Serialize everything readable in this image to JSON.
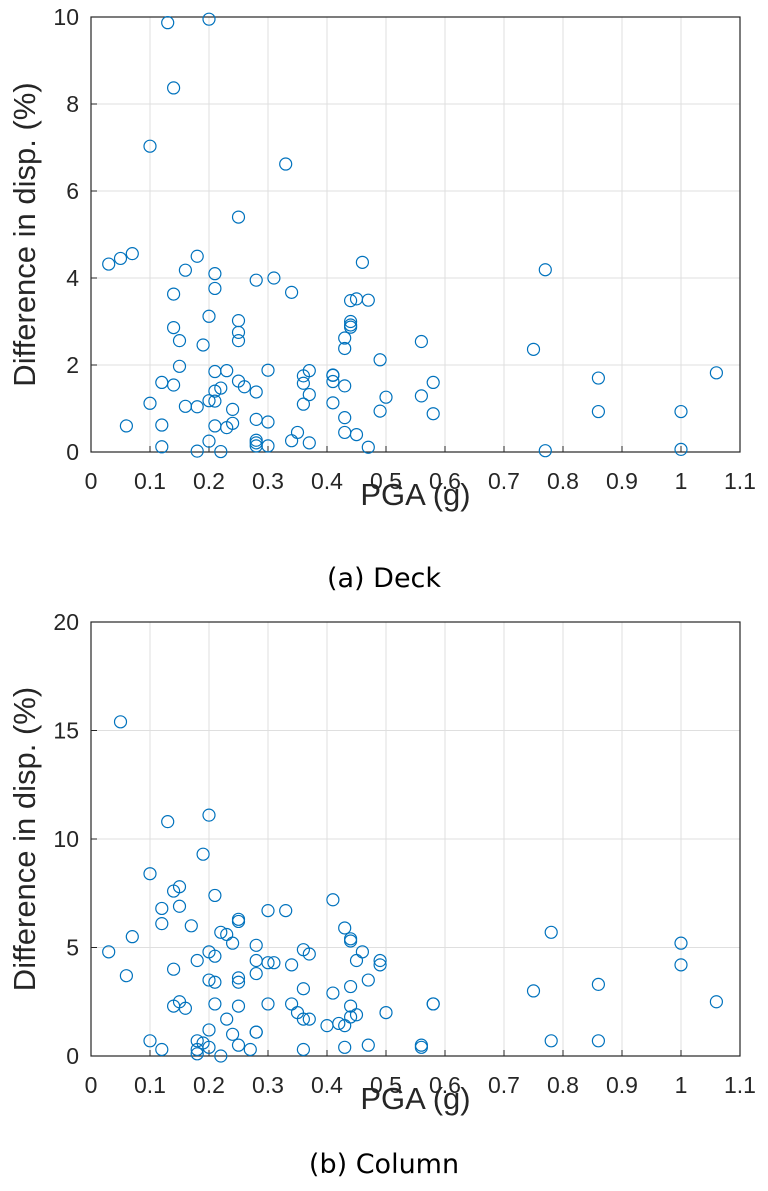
{
  "chart_data": [
    {
      "type": "scatter",
      "caption": "(a) Deck",
      "xlabel": "PGA (g)",
      "ylabel": "Difference in disp. (%)",
      "xlim": [
        0,
        1.1
      ],
      "ylim": [
        0,
        10
      ],
      "xticks": [
        "0",
        "0.1",
        "0.2",
        "0.3",
        "0.4",
        "0.5",
        "0.6",
        "0.7",
        "0.8",
        "0.9",
        "1",
        "1.1"
      ],
      "yticks": [
        "0",
        "2",
        "4",
        "6",
        "8",
        "10"
      ],
      "grid": true,
      "marker_color": "#0072BD",
      "points": [
        [
          0.13,
          9.87
        ],
        [
          0.2,
          9.95
        ],
        [
          0.14,
          8.37
        ],
        [
          0.1,
          7.03
        ],
        [
          0.33,
          6.62
        ],
        [
          0.25,
          5.4
        ],
        [
          0.03,
          4.32
        ],
        [
          0.05,
          4.45
        ],
        [
          0.07,
          4.56
        ],
        [
          0.16,
          4.18
        ],
        [
          0.18,
          4.5
        ],
        [
          0.21,
          4.1
        ],
        [
          0.21,
          3.76
        ],
        [
          0.28,
          3.95
        ],
        [
          0.31,
          4.0
        ],
        [
          0.46,
          4.36
        ],
        [
          0.77,
          4.19
        ],
        [
          0.14,
          3.63
        ],
        [
          0.34,
          3.67
        ],
        [
          0.44,
          3.48
        ],
        [
          0.45,
          3.52
        ],
        [
          0.47,
          3.49
        ],
        [
          0.2,
          3.12
        ],
        [
          0.25,
          3.02
        ],
        [
          0.44,
          3.0
        ],
        [
          0.44,
          2.87
        ],
        [
          0.44,
          2.92
        ],
        [
          0.14,
          2.86
        ],
        [
          0.25,
          2.75
        ],
        [
          0.25,
          2.56
        ],
        [
          0.15,
          2.56
        ],
        [
          0.43,
          2.62
        ],
        [
          0.43,
          2.38
        ],
        [
          0.19,
          2.46
        ],
        [
          0.56,
          2.54
        ],
        [
          0.75,
          2.36
        ],
        [
          0.49,
          2.12
        ],
        [
          0.15,
          1.97
        ],
        [
          0.21,
          1.85
        ],
        [
          0.23,
          1.87
        ],
        [
          0.3,
          1.88
        ],
        [
          0.37,
          1.87
        ],
        [
          0.36,
          1.75
        ],
        [
          0.41,
          1.77
        ],
        [
          0.41,
          1.76
        ],
        [
          0.12,
          1.6
        ],
        [
          0.14,
          1.54
        ],
        [
          0.25,
          1.63
        ],
        [
          0.26,
          1.5
        ],
        [
          0.21,
          1.4
        ],
        [
          0.22,
          1.47
        ],
        [
          0.28,
          1.38
        ],
        [
          0.36,
          1.58
        ],
        [
          0.41,
          1.62
        ],
        [
          0.43,
          1.52
        ],
        [
          0.37,
          1.32
        ],
        [
          0.5,
          1.26
        ],
        [
          0.56,
          1.29
        ],
        [
          0.58,
          1.6
        ],
        [
          0.86,
          1.7
        ],
        [
          1.06,
          1.82
        ],
        [
          0.1,
          1.12
        ],
        [
          0.16,
          1.05
        ],
        [
          0.18,
          1.04
        ],
        [
          0.2,
          1.18
        ],
        [
          0.21,
          1.17
        ],
        [
          0.24,
          0.98
        ],
        [
          0.35,
          0.45
        ],
        [
          0.36,
          1.1
        ],
        [
          0.41,
          1.13
        ],
        [
          0.49,
          0.94
        ],
        [
          0.58,
          0.88
        ],
        [
          0.86,
          0.93
        ],
        [
          1.0,
          0.93
        ],
        [
          0.06,
          0.6
        ],
        [
          0.12,
          0.62
        ],
        [
          0.21,
          0.6
        ],
        [
          0.23,
          0.56
        ],
        [
          0.24,
          0.66
        ],
        [
          0.28,
          0.75
        ],
        [
          0.3,
          0.69
        ],
        [
          0.43,
          0.79
        ],
        [
          0.43,
          0.45
        ],
        [
          0.45,
          0.4
        ],
        [
          0.12,
          0.12
        ],
        [
          0.18,
          0.02
        ],
        [
          0.2,
          0.25
        ],
        [
          0.22,
          0.01
        ],
        [
          0.28,
          0.14
        ],
        [
          0.28,
          0.21
        ],
        [
          0.28,
          0.27
        ],
        [
          0.3,
          0.14
        ],
        [
          0.34,
          0.26
        ],
        [
          0.37,
          0.21
        ],
        [
          0.47,
          0.11
        ],
        [
          0.77,
          0.03
        ],
        [
          1.0,
          0.06
        ]
      ]
    },
    {
      "type": "scatter",
      "caption": "(b) Column",
      "xlabel": "PGA (g)",
      "ylabel": "Difference in disp. (%)",
      "xlim": [
        0,
        1.1
      ],
      "ylim": [
        0,
        20
      ],
      "xticks": [
        "0",
        "0.1",
        "0.2",
        "0.3",
        "0.4",
        "0.5",
        "0.6",
        "0.7",
        "0.8",
        "0.9",
        "1",
        "1.1"
      ],
      "yticks": [
        "0",
        "5",
        "10",
        "15",
        "20"
      ],
      "grid": true,
      "marker_color": "#0072BD",
      "points": [
        [
          0.05,
          15.4
        ],
        [
          0.13,
          10.8
        ],
        [
          0.2,
          11.1
        ],
        [
          0.19,
          9.3
        ],
        [
          0.1,
          8.4
        ],
        [
          0.14,
          7.6
        ],
        [
          0.15,
          7.8
        ],
        [
          0.21,
          7.4
        ],
        [
          0.41,
          7.2
        ],
        [
          0.15,
          6.9
        ],
        [
          0.12,
          6.8
        ],
        [
          0.3,
          6.7
        ],
        [
          0.33,
          6.7
        ],
        [
          0.25,
          6.3
        ],
        [
          0.25,
          6.2
        ],
        [
          0.12,
          6.1
        ],
        [
          0.17,
          6.0
        ],
        [
          0.22,
          5.7
        ],
        [
          0.23,
          5.6
        ],
        [
          0.24,
          5.2
        ],
        [
          0.43,
          5.9
        ],
        [
          0.44,
          5.4
        ],
        [
          0.44,
          5.3
        ],
        [
          0.07,
          5.5
        ],
        [
          0.28,
          5.1
        ],
        [
          0.78,
          5.7
        ],
        [
          1.0,
          5.2
        ],
        [
          0.03,
          4.8
        ],
        [
          0.2,
          4.8
        ],
        [
          0.21,
          4.6
        ],
        [
          0.36,
          4.9
        ],
        [
          0.37,
          4.7
        ],
        [
          0.46,
          4.8
        ],
        [
          0.18,
          4.4
        ],
        [
          0.28,
          4.4
        ],
        [
          0.3,
          4.3
        ],
        [
          0.31,
          4.3
        ],
        [
          0.34,
          4.2
        ],
        [
          0.45,
          4.4
        ],
        [
          0.49,
          4.2
        ],
        [
          0.49,
          4.4
        ],
        [
          1.0,
          4.2
        ],
        [
          0.06,
          3.7
        ],
        [
          0.14,
          4.0
        ],
        [
          0.2,
          3.5
        ],
        [
          0.21,
          3.4
        ],
        [
          0.25,
          3.4
        ],
        [
          0.25,
          3.6
        ],
        [
          0.28,
          3.8
        ],
        [
          0.36,
          3.1
        ],
        [
          0.47,
          3.5
        ],
        [
          0.44,
          3.2
        ],
        [
          0.86,
          3.3
        ],
        [
          0.14,
          2.3
        ],
        [
          0.15,
          2.5
        ],
        [
          0.16,
          2.2
        ],
        [
          0.21,
          2.4
        ],
        [
          0.25,
          2.3
        ],
        [
          0.3,
          2.4
        ],
        [
          0.34,
          2.4
        ],
        [
          0.35,
          2.0
        ],
        [
          0.41,
          2.9
        ],
        [
          0.44,
          2.3
        ],
        [
          0.5,
          2.0
        ],
        [
          0.58,
          2.4
        ],
        [
          0.58,
          2.4
        ],
        [
          0.75,
          3.0
        ],
        [
          1.06,
          2.5
        ],
        [
          0.36,
          1.7
        ],
        [
          0.37,
          1.7
        ],
        [
          0.23,
          1.7
        ],
        [
          0.4,
          1.4
        ],
        [
          0.42,
          1.5
        ],
        [
          0.43,
          1.4
        ],
        [
          0.44,
          1.8
        ],
        [
          0.45,
          1.9
        ],
        [
          0.2,
          1.2
        ],
        [
          0.24,
          1.0
        ],
        [
          0.28,
          1.1
        ],
        [
          0.28,
          1.1
        ],
        [
          0.1,
          0.7
        ],
        [
          0.12,
          0.3
        ],
        [
          0.18,
          0.7
        ],
        [
          0.18,
          0.3
        ],
        [
          0.18,
          0.1
        ],
        [
          0.19,
          0.6
        ],
        [
          0.2,
          0.4
        ],
        [
          0.22,
          0.0
        ],
        [
          0.25,
          0.5
        ],
        [
          0.27,
          0.3
        ],
        [
          0.36,
          0.3
        ],
        [
          0.43,
          0.4
        ],
        [
          0.47,
          0.5
        ],
        [
          0.56,
          0.5
        ],
        [
          0.56,
          0.4
        ],
        [
          0.78,
          0.7
        ],
        [
          0.86,
          0.7
        ]
      ]
    }
  ]
}
